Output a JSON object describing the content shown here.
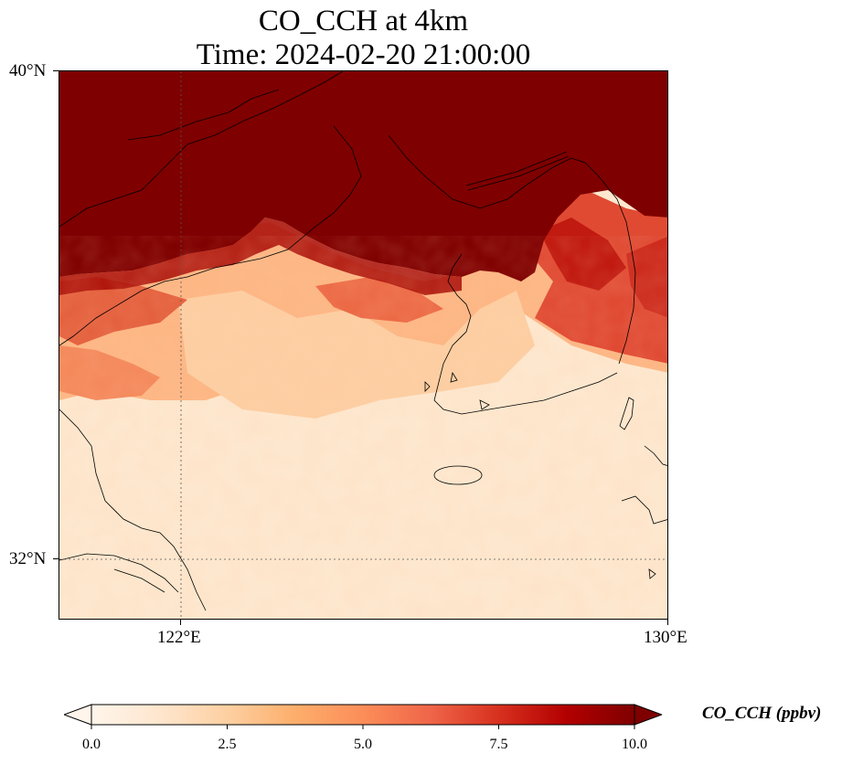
{
  "title_line1": "CO_CCH at 4km",
  "title_line2": "Time: 2024-02-20 21:00:00",
  "lat_labels": [
    "40°N",
    "32°N"
  ],
  "lon_labels": [
    "122°E",
    "130°E"
  ],
  "colorbar": {
    "label": "CO_CCH (ppbv)",
    "ticks": [
      "0.0",
      "2.5",
      "5.0",
      "7.5",
      "10.0"
    ],
    "min": 0,
    "max": 10,
    "colormap": [
      "#fff5eb",
      "#fee6ce",
      "#fdd0a2",
      "#fdae6b",
      "#fc8d59",
      "#ef6548",
      "#d7301f",
      "#b30000",
      "#7f0000"
    ]
  },
  "field": {
    "lon_range": [
      120,
      130
    ],
    "lat_range": [
      31,
      40
    ],
    "saturated_color": "#7f0000"
  }
}
